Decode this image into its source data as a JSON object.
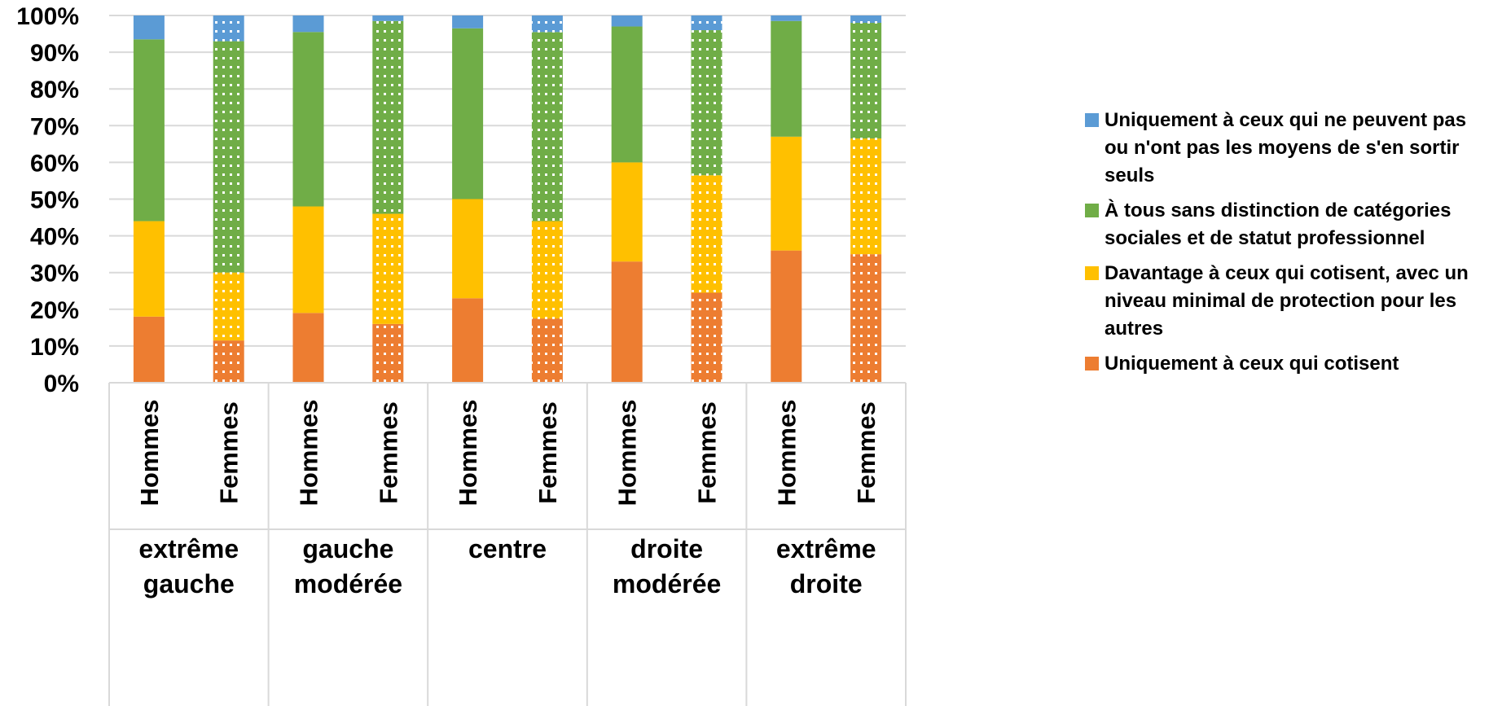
{
  "chart_data": {
    "type": "bar",
    "stacked": true,
    "normalized": true,
    "ylim": [
      0,
      100
    ],
    "y_ticks": [
      "0%",
      "10%",
      "20%",
      "30%",
      "40%",
      "50%",
      "60%",
      "70%",
      "80%",
      "90%",
      "100%"
    ],
    "grid": true,
    "legend_position": "right",
    "groups": [
      "extrême gauche",
      "gauche modérée",
      "centre",
      "droite modérée",
      "extrême droite"
    ],
    "subcategories": [
      "Hommes",
      "Femmes"
    ],
    "categories": [
      "Hommes extrême gauche",
      "Femmes extrême gauche",
      "Hommes gauche modérée",
      "Femmes gauche modérée",
      "Hommes centre",
      "Femmes centre",
      "Hommes droite modérée",
      "Femmes droite modérée",
      "Hommes extrême droite",
      "Femmes extrême droite"
    ],
    "pattern_for_femmes": "dotted",
    "series": [
      {
        "name": "Uniquement à ceux qui cotisent",
        "color": "#ED7D31",
        "values": [
          18,
          11.5,
          19,
          16,
          23,
          17.5,
          33,
          24.5,
          36,
          35
        ]
      },
      {
        "name": "Davantage à ceux qui cotisent, avec un niveau minimal de protection pour les autres",
        "color": "#FFC000",
        "values": [
          26,
          18.5,
          29,
          30,
          27,
          26.5,
          27,
          32,
          31,
          31.5
        ]
      },
      {
        "name": "À tous sans distinction de catégories sociales et de statut professionnel",
        "color": "#70AD47",
        "values": [
          49.5,
          63,
          47.5,
          52.5,
          46.5,
          51.5,
          37,
          39.5,
          31.5,
          31.5
        ]
      },
      {
        "name": "Uniquement à ceux qui ne peuvent pas ou n'ont pas les moyens de s'en sortir seuls",
        "color": "#5B9BD5",
        "values": [
          6.5,
          7,
          4.5,
          1.5,
          3.5,
          4.5,
          3,
          4,
          1.5,
          2
        ]
      }
    ]
  },
  "legend": {
    "items": [
      {
        "label": "Uniquement à ceux qui ne peuvent pas ou n'ont pas les moyens de s'en sortir seuls",
        "color": "#5B9BD5"
      },
      {
        "label": "À tous sans distinction de catégories sociales et de statut professionnel",
        "color": "#70AD47"
      },
      {
        "label": "Davantage à ceux qui cotisent, avec un niveau minimal de protection pour les autres",
        "color": "#FFC000"
      },
      {
        "label": "Uniquement à ceux qui cotisent",
        "color": "#ED7D31"
      }
    ]
  }
}
